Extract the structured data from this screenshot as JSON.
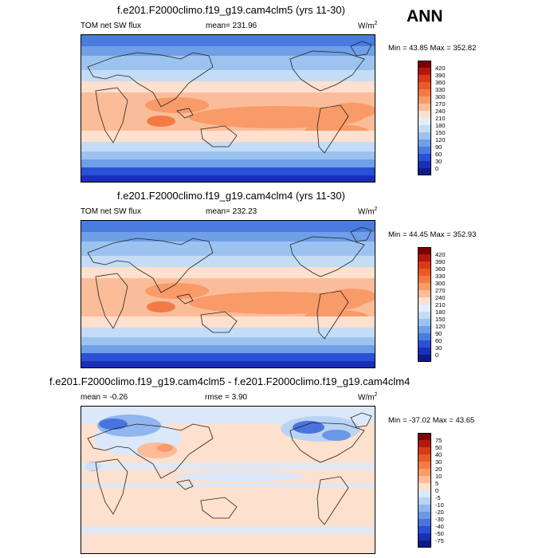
{
  "season": "ANN",
  "panels": [
    {
      "title": "f.e201.F2000climo.f19_g19.cam4clm5 (yrs 11-30)",
      "left_label": "TOM net SW flux",
      "center_label": "mean=  231.96",
      "units": "W/m",
      "units_sup": "2",
      "minmax": "Min =  43.85 Max = 352.82",
      "levels": [
        "420",
        "390",
        "360",
        "330",
        "300",
        "270",
        "240",
        "210",
        "180",
        "150",
        "120",
        "90",
        "60",
        "30",
        "0"
      ]
    },
    {
      "title": "f.e201.F2000climo.f19_g19.cam4clm4 (yrs 11-30)",
      "left_label": "TOM net SW flux",
      "center_label": "mean=  232.23",
      "units": "W/m",
      "units_sup": "2",
      "minmax": "Min =  44.45 Max = 352.93",
      "levels": [
        "420",
        "390",
        "360",
        "330",
        "300",
        "270",
        "240",
        "210",
        "180",
        "150",
        "120",
        "90",
        "60",
        "30",
        "0"
      ]
    },
    {
      "title": "f.e201.F2000climo.f19_g19.cam4clm5 - f.e201.F2000climo.f19_g19.cam4clm4",
      "left_label": "mean =  -0.26",
      "center_label": "rmse =   3.90",
      "units": "W/m",
      "units_sup": "2",
      "minmax": "Min = -37.02 Max =  43.65",
      "levels": [
        "75",
        "50",
        "40",
        "30",
        "20",
        "10",
        "5",
        "0",
        "-5",
        "-10",
        "-20",
        "-30",
        "-40",
        "-50",
        "-75"
      ]
    }
  ],
  "colors": {
    "abs_scale": [
      "#7f0000",
      "#b2180e",
      "#d93a17",
      "#ea5a28",
      "#f47a45",
      "#f99a69",
      "#fbbd99",
      "#fde0cd",
      "#e3eefb",
      "#c4dcf6",
      "#9cc3f0",
      "#6f9fe7",
      "#4a7be0",
      "#2a50d4",
      "#1a2fb8",
      "#0d1a8a"
    ],
    "diff_scale": [
      "#7f0000",
      "#b2180e",
      "#d93a17",
      "#ea5a28",
      "#f47a45",
      "#f99a69",
      "#fbbd99",
      "#fde0cd",
      "#dbe8fa",
      "#b8d3f4",
      "#8fb6ee",
      "#6a97e6",
      "#4a74dd",
      "#2c4fd2",
      "#1a2fb8",
      "#0d1a8a"
    ],
    "coast": "#222222"
  }
}
